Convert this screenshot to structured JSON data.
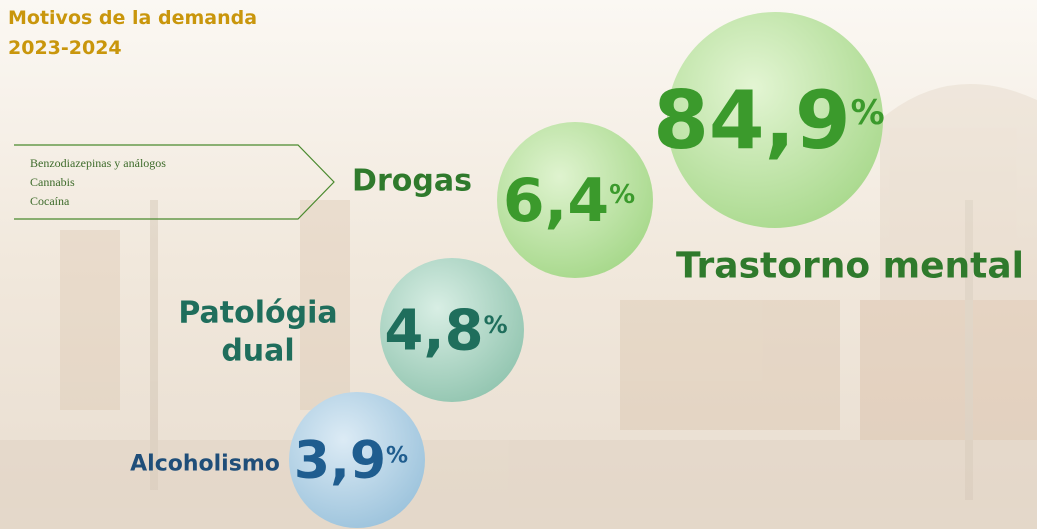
{
  "header": {
    "title": [
      "Motivos de la demanda",
      "2023-2024"
    ]
  },
  "drug_box": {
    "items": [
      "Benzodiazepinas y análogos",
      "Cannabis",
      "Cocaína"
    ]
  },
  "bubbles": [
    {
      "label": [
        "Trastorno mental"
      ],
      "value": "84,9",
      "unit": "%"
    },
    {
      "label": [
        "Drogas"
      ],
      "value": "6,4",
      "unit": "%"
    },
    {
      "label": [
        "Patológia",
        "dual"
      ],
      "value": "4,8",
      "unit": "%"
    },
    {
      "label": [
        "Alcoholismo"
      ],
      "value": "3,9",
      "unit": "%"
    }
  ]
}
